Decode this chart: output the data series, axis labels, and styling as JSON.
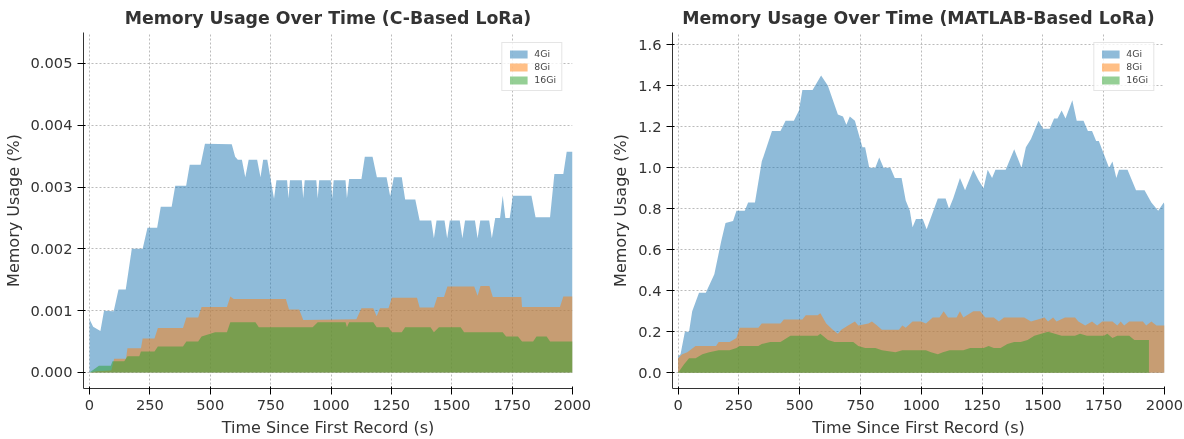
{
  "chart_data": [
    {
      "type": "area",
      "title": "Memory Usage Over Time (C-Based LoRa)",
      "xlabel": "Time Since First Record (s)",
      "ylabel": "Memory Usage (%)",
      "xlim": [
        -25,
        2000
      ],
      "ylim": [
        -0.00026,
        0.0055
      ],
      "xticks": [
        0,
        250,
        500,
        750,
        1000,
        1250,
        1500,
        1750,
        2000
      ],
      "yticks": [
        {
          "value": 0,
          "label": "0.000"
        },
        {
          "value": 0.001,
          "label": "0.001"
        },
        {
          "value": 0.002,
          "label": "0.002"
        },
        {
          "value": 0.003,
          "label": "0.003"
        },
        {
          "value": 0.004,
          "label": "0.004"
        },
        {
          "value": 0.005,
          "label": "0.005"
        }
      ],
      "grid": true,
      "legend": "top right",
      "series": [
        {
          "name": "4Gi",
          "color": "#1f77b4",
          "x": [
            0,
            15,
            45,
            60,
            100,
            120,
            150,
            175,
            220,
            240,
            280,
            295,
            340,
            355,
            400,
            415,
            460,
            478,
            589,
            603,
            614,
            631,
            645,
            659,
            694,
            708,
            719,
            736,
            764,
            774,
            818,
            824,
            830,
            879,
            885,
            891,
            939,
            945,
            951,
            999,
            1005,
            1011,
            1060,
            1066,
            1075,
            1126,
            1140,
            1172,
            1190,
            1230,
            1245,
            1260,
            1293,
            1307,
            1349,
            1367,
            1415,
            1426,
            1437,
            1470,
            1481,
            1492,
            1533,
            1544,
            1555,
            1596,
            1607,
            1618,
            1655,
            1666,
            1680,
            1700,
            1711,
            1722,
            1740,
            1753,
            1830,
            1847,
            1907,
            1925,
            1962,
            1976,
            2000
          ],
          "values": [
            0.00086,
            0.00074,
            0.00067,
            0.001,
            0.00099,
            0.00134,
            0.00134,
            0.002,
            0.002,
            0.00234,
            0.00234,
            0.00268,
            0.00268,
            0.00302,
            0.00302,
            0.00336,
            0.00336,
            0.0037,
            0.00369,
            0.00349,
            0.00344,
            0.00344,
            0.00316,
            0.00344,
            0.00344,
            0.00316,
            0.00344,
            0.00344,
            0.00281,
            0.00311,
            0.00311,
            0.00282,
            0.00311,
            0.00311,
            0.00282,
            0.00311,
            0.00311,
            0.00282,
            0.00311,
            0.00311,
            0.00282,
            0.00311,
            0.00311,
            0.00282,
            0.00313,
            0.00313,
            0.00349,
            0.00349,
            0.00316,
            0.00316,
            0.00285,
            0.00316,
            0.00316,
            0.0028,
            0.0028,
            0.00246,
            0.00246,
            0.00217,
            0.00246,
            0.00246,
            0.00217,
            0.00246,
            0.00246,
            0.00217,
            0.00246,
            0.00246,
            0.00217,
            0.00246,
            0.00246,
            0.00217,
            0.0025,
            0.0025,
            0.00286,
            0.0025,
            0.0025,
            0.00286,
            0.00286,
            0.00251,
            0.00251,
            0.00321,
            0.00321,
            0.00357,
            0.00357
          ]
        },
        {
          "name": "8Gi",
          "color": "#ff7f0e",
          "x": [
            0,
            30,
            90,
            102,
            151,
            157,
            213,
            220,
            269,
            283,
            387,
            401,
            450,
            464,
            569,
            583,
            597,
            813,
            826,
            868,
            885,
            1105,
            1126,
            1175,
            1189,
            1203,
            1238,
            1252,
            1356,
            1367,
            1426,
            1440,
            1468,
            1482,
            1593,
            1607,
            1619,
            1656,
            1670,
            1788,
            1791,
            1948,
            1962,
            2000
          ],
          "values": [
            0,
            2e-05,
            3e-05,
            0.00022,
            0.00022,
            0.00039,
            0.00039,
            0.00055,
            0.00055,
            0.00072,
            0.00072,
            0.00089,
            0.00089,
            0.00106,
            0.00106,
            0.00123,
            0.00119,
            0.00119,
            0.00102,
            0.00102,
            0.00085,
            0.00086,
            0.00104,
            0.00104,
            0.00091,
            0.00104,
            0.00104,
            0.00121,
            0.00121,
            0.00105,
            0.00105,
            0.00122,
            0.00122,
            0.00139,
            0.00139,
            0.00124,
            0.0014,
            0.0014,
            0.00122,
            0.00122,
            0.00106,
            0.00106,
            0.00123,
            0.00123
          ]
        },
        {
          "name": "16Gi",
          "color": "#2ca02c",
          "x": [
            0,
            39,
            88,
            95,
            144,
            157,
            206,
            213,
            269,
            283,
            387,
            401,
            450,
            464,
            520,
            569,
            583,
            687,
            701,
            924,
            945,
            1060,
            1066,
            1075,
            1175,
            1189,
            1238,
            1252,
            1293,
            1307,
            1412,
            1426,
            1447,
            1537,
            1551,
            1711,
            1725,
            1774,
            1791,
            1837,
            1851,
            1893,
            1907,
            2000
          ],
          "values": [
            0,
            0.00011,
            0.00011,
            0.00018,
            0.00018,
            0.00026,
            0.00026,
            0.00034,
            0.00034,
            0.00042,
            0.00042,
            0.0005,
            0.0005,
            0.00058,
            0.00065,
            0.00065,
            0.00081,
            0.00081,
            0.00073,
            0.00073,
            0.00081,
            0.00081,
            0.00073,
            0.00081,
            0.00081,
            0.00073,
            0.00073,
            0.00065,
            0.00065,
            0.00073,
            0.00073,
            0.00065,
            0.00073,
            0.00073,
            0.00065,
            0.00065,
            0.00058,
            0.00058,
            0.0005,
            0.0005,
            0.00058,
            0.00058,
            0.0005,
            0.0005
          ]
        }
      ]
    },
    {
      "type": "area",
      "title": "Memory Usage Over Time (MATLAB-Based LoRa)",
      "xlabel": "Time Since First Record (s)",
      "ylabel": "Memory Usage (%)",
      "xlim": [
        -23,
        2000
      ],
      "ylim": [
        -0.077,
        1.66
      ],
      "xticks": [
        0,
        250,
        500,
        750,
        1000,
        1250,
        1500,
        1750,
        2000
      ],
      "yticks": [
        {
          "value": 0,
          "label": "0.0"
        },
        {
          "value": 0.2,
          "label": "0.2"
        },
        {
          "value": 0.4,
          "label": "0.4"
        },
        {
          "value": 0.6,
          "label": "0.6"
        },
        {
          "value": 0.8,
          "label": "0.8"
        },
        {
          "value": 1.0,
          "label": "1.0"
        },
        {
          "value": 1.2,
          "label": "1.2"
        },
        {
          "value": 1.4,
          "label": "1.4"
        },
        {
          "value": 1.6,
          "label": "1.6"
        }
      ],
      "grid": true,
      "legend": "top right",
      "series": [
        {
          "name": "4Gi",
          "color": "#1f77b4",
          "x": [
            0,
            10,
            28,
            45,
            58,
            86,
            114,
            149,
            177,
            195,
            226,
            240,
            274,
            288,
            316,
            344,
            386,
            421,
            442,
            476,
            497,
            511,
            553,
            588,
            616,
            657,
            678,
            692,
            706,
            727,
            758,
            769,
            786,
            811,
            827,
            845,
            873,
            891,
            919,
            936,
            953,
            964,
            978,
            1006,
            1022,
            1068,
            1100,
            1114,
            1131,
            1159,
            1180,
            1214,
            1235,
            1256,
            1273,
            1291,
            1305,
            1347,
            1382,
            1412,
            1430,
            1451,
            1482,
            1500,
            1528,
            1546,
            1560,
            1577,
            1593,
            1621,
            1639,
            1667,
            1685,
            1702,
            1719,
            1730,
            1772,
            1786,
            1802,
            1813,
            1848,
            1883,
            1918,
            1946,
            1974,
            1997,
            2000
          ],
          "values": [
            0.08,
            0.09,
            0.2,
            0.2,
            0.3,
            0.39,
            0.39,
            0.48,
            0.64,
            0.73,
            0.74,
            0.79,
            0.79,
            0.83,
            0.83,
            1.03,
            1.18,
            1.18,
            1.23,
            1.23,
            1.28,
            1.38,
            1.38,
            1.45,
            1.4,
            1.26,
            1.25,
            1.21,
            1.25,
            1.23,
            1.1,
            1.1,
            1.0,
            1.0,
            1.05,
            1.0,
            1.0,
            0.95,
            0.95,
            0.84,
            0.79,
            0.71,
            0.75,
            0.75,
            0.7,
            0.85,
            0.85,
            0.8,
            0.85,
            0.95,
            0.89,
            0.99,
            0.94,
            0.9,
            0.99,
            0.95,
            0.99,
            0.99,
            1.09,
            1.0,
            1.1,
            1.14,
            1.23,
            1.19,
            1.19,
            1.24,
            1.24,
            1.28,
            1.24,
            1.33,
            1.23,
            1.23,
            1.18,
            1.18,
            1.13,
            1.13,
            1.0,
            1.03,
            0.95,
            0.99,
            0.99,
            0.89,
            0.89,
            0.83,
            0.79,
            0.83,
            0.82
          ]
        },
        {
          "name": "8Gi",
          "color": "#ff7f0e",
          "x": [
            0,
            17,
            38,
            72,
            156,
            167,
            212,
            240,
            253,
            330,
            344,
            421,
            435,
            511,
            525,
            574,
            585,
            609,
            636,
            657,
            671,
            699,
            727,
            741,
            783,
            797,
            818,
            838,
            908,
            922,
            936,
            964,
            999,
            1019,
            1047,
            1075,
            1092,
            1110,
            1145,
            1159,
            1173,
            1214,
            1242,
            1263,
            1298,
            1319,
            1340,
            1423,
            1451,
            1507,
            1521,
            1542,
            1556,
            1591,
            1632,
            1646,
            1674,
            1702,
            1723,
            1744,
            1786,
            1806,
            1820,
            1834,
            1855,
            1911,
            1925,
            1946,
            1967,
            2000
          ],
          "values": [
            0.07,
            0.09,
            0.1,
            0.13,
            0.13,
            0.15,
            0.15,
            0.17,
            0.22,
            0.22,
            0.24,
            0.24,
            0.26,
            0.26,
            0.28,
            0.28,
            0.29,
            0.24,
            0.21,
            0.19,
            0.21,
            0.23,
            0.25,
            0.23,
            0.24,
            0.25,
            0.23,
            0.21,
            0.21,
            0.23,
            0.22,
            0.25,
            0.25,
            0.24,
            0.27,
            0.27,
            0.3,
            0.27,
            0.27,
            0.3,
            0.27,
            0.3,
            0.3,
            0.27,
            0.27,
            0.25,
            0.27,
            0.27,
            0.25,
            0.27,
            0.25,
            0.27,
            0.25,
            0.27,
            0.27,
            0.25,
            0.23,
            0.25,
            0.23,
            0.25,
            0.25,
            0.23,
            0.25,
            0.23,
            0.25,
            0.25,
            0.23,
            0.25,
            0.23,
            0.23
          ]
        },
        {
          "name": "16Gi",
          "color": "#2ca02c",
          "x": [
            0,
            24,
            45,
            72,
            100,
            128,
            167,
            212,
            240,
            253,
            330,
            344,
            379,
            421,
            462,
            574,
            585,
            616,
            643,
            720,
            741,
            769,
            811,
            838,
            894,
            922,
            1019,
            1040,
            1068,
            1089,
            1117,
            1173,
            1201,
            1256,
            1277,
            1298,
            1326,
            1354,
            1382,
            1409,
            1437,
            1465,
            1493,
            1521,
            1549,
            1577,
            1632,
            1653,
            1681,
            1751,
            1765,
            1786,
            1806,
            1855,
            1876,
            1936
          ],
          "values": [
            0,
            0.04,
            0.07,
            0.07,
            0.09,
            0.1,
            0.11,
            0.11,
            0.12,
            0.13,
            0.13,
            0.14,
            0.15,
            0.15,
            0.18,
            0.18,
            0.19,
            0.16,
            0.15,
            0.15,
            0.13,
            0.12,
            0.12,
            0.11,
            0.1,
            0.11,
            0.11,
            0.1,
            0.09,
            0.1,
            0.11,
            0.11,
            0.12,
            0.12,
            0.13,
            0.12,
            0.12,
            0.14,
            0.15,
            0.15,
            0.16,
            0.18,
            0.19,
            0.2,
            0.19,
            0.18,
            0.18,
            0.19,
            0.18,
            0.18,
            0.19,
            0.17,
            0.18,
            0.18,
            0.16,
            0.16
          ]
        }
      ]
    }
  ]
}
